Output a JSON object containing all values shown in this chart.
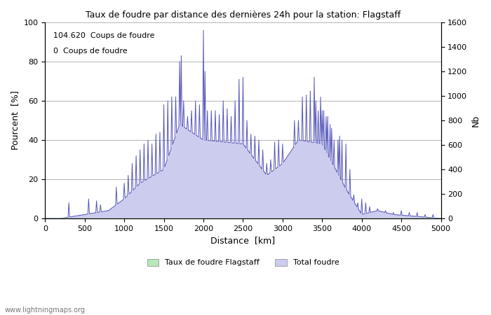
{
  "title": "Taux de foudre par distance des dernières 24h pour la station: Flagstaff",
  "annotation_line1": "104.620  Coups de foudre",
  "annotation_line2": "0  Coups de foudre",
  "xlabel": "Distance  [km]",
  "ylabel_left": "Pourcent  [%]",
  "ylabel_right": "Nb",
  "xlim": [
    0,
    5000
  ],
  "ylim_left": [
    0,
    100
  ],
  "ylim_right": [
    0,
    1600
  ],
  "xticks": [
    0,
    500,
    1000,
    1500,
    2000,
    2500,
    3000,
    3500,
    4000,
    4500,
    5000
  ],
  "yticks_left": [
    0,
    20,
    40,
    60,
    80,
    100
  ],
  "yticks_right": [
    0,
    200,
    400,
    600,
    800,
    1000,
    1200,
    1400,
    1600
  ],
  "legend_label_green": "Taux de foudre Flagstaff",
  "legend_label_blue": "Total foudre",
  "fill_green_color": "#b8e8b8",
  "fill_blue_color": "#ccccee",
  "line_color": "#5555bb",
  "watermark": "www.lightningmaps.org",
  "bg_color": "#ffffff",
  "grid_color": "#999999"
}
